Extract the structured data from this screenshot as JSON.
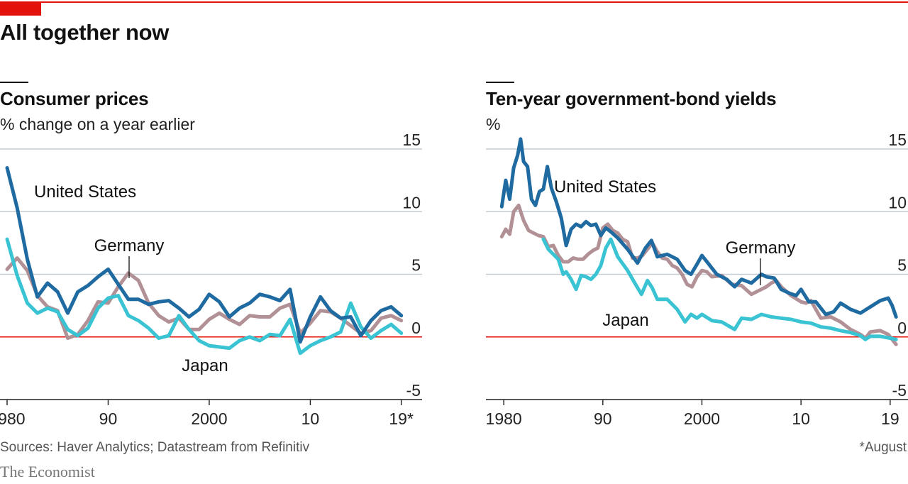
{
  "title": "All together now",
  "source": "Sources: Haver Analytics; Datastream from Refinitiv",
  "footnote": "*August",
  "brand": "The Economist",
  "colors": {
    "accent": "#e3120b",
    "united_states": "#1f6aa0",
    "germany": "#b19096",
    "japan": "#39c3d3",
    "grid": "#c4ccd6",
    "zero_line": "#e3120b"
  },
  "chart_data": [
    {
      "type": "line",
      "title": "Consumer prices",
      "subtitle": "% change on a year earlier",
      "ylim": [
        -5,
        15
      ],
      "xlim": [
        1979.3,
        2021.2
      ],
      "yticks": [
        15,
        10,
        5,
        0,
        -5
      ],
      "ytick_labels": [
        "15",
        "10",
        "5",
        "0",
        "-5"
      ],
      "xticks": [
        1980,
        1990,
        2000,
        2010,
        2019
      ],
      "xtick_labels": [
        "1980",
        "90",
        "2000",
        "10",
        "19*"
      ],
      "series": [
        {
          "name": "United States",
          "label": "United States",
          "color": "#1f6aa0",
          "x": [
            1980,
            1981,
            1982,
            1983,
            1984,
            1985,
            1986,
            1987,
            1988,
            1989,
            1990,
            1991,
            1992,
            1993,
            1994,
            1995,
            1996,
            1997,
            1998,
            1999,
            2000,
            2001,
            2002,
            2003,
            2004,
            2005,
            2006,
            2007,
            2008,
            2009,
            2010,
            2011,
            2012,
            2013,
            2014,
            2015,
            2016,
            2017,
            2018,
            2019
          ],
          "values": [
            13.5,
            10.3,
            6.2,
            3.2,
            4.3,
            3.6,
            1.9,
            3.6,
            4.1,
            4.8,
            5.4,
            4.2,
            3.0,
            3.0,
            2.6,
            2.8,
            2.9,
            2.3,
            1.6,
            2.2,
            3.4,
            2.8,
            1.6,
            2.3,
            2.7,
            3.4,
            3.2,
            2.9,
            3.8,
            -0.4,
            1.6,
            3.2,
            2.1,
            1.5,
            1.6,
            0.1,
            1.3,
            2.1,
            2.4,
            1.7
          ]
        },
        {
          "name": "Germany",
          "label": "Germany",
          "color": "#b19096",
          "x": [
            1980,
            1981,
            1982,
            1983,
            1984,
            1985,
            1986,
            1987,
            1988,
            1989,
            1990,
            1991,
            1992,
            1993,
            1994,
            1995,
            1996,
            1997,
            1998,
            1999,
            2000,
            2001,
            2002,
            2003,
            2004,
            2005,
            2006,
            2007,
            2008,
            2009,
            2010,
            2011,
            2012,
            2013,
            2014,
            2015,
            2016,
            2017,
            2018,
            2019
          ],
          "values": [
            5.4,
            6.3,
            5.3,
            3.3,
            2.4,
            2.1,
            -0.1,
            0.2,
            1.3,
            2.8,
            2.7,
            4.0,
            5.1,
            4.5,
            2.7,
            1.7,
            1.2,
            1.5,
            0.6,
            0.6,
            1.4,
            1.9,
            1.4,
            1.0,
            1.7,
            1.6,
            1.6,
            2.3,
            2.6,
            0.3,
            1.1,
            2.1,
            2.0,
            1.5,
            0.9,
            0.3,
            0.5,
            1.5,
            1.7,
            1.3
          ]
        },
        {
          "name": "Japan",
          "label": "Japan",
          "color": "#39c3d3",
          "x": [
            1980,
            1981,
            1982,
            1983,
            1984,
            1985,
            1986,
            1987,
            1988,
            1989,
            1990,
            1991,
            1992,
            1993,
            1994,
            1995,
            1996,
            1997,
            1998,
            1999,
            2000,
            2001,
            2002,
            2003,
            2004,
            2005,
            2006,
            2007,
            2008,
            2009,
            2010,
            2011,
            2012,
            2013,
            2014,
            2015,
            2016,
            2017,
            2018,
            2019
          ],
          "values": [
            7.8,
            4.9,
            2.7,
            1.9,
            2.3,
            2.0,
            0.6,
            0.1,
            0.7,
            2.3,
            3.1,
            3.3,
            1.7,
            1.3,
            0.7,
            -0.1,
            0.1,
            1.7,
            0.6,
            -0.3,
            -0.7,
            -0.8,
            -0.9,
            -0.3,
            0.0,
            -0.3,
            0.2,
            0.1,
            1.4,
            -1.3,
            -0.7,
            -0.3,
            0.0,
            0.4,
            2.7,
            0.8,
            -0.1,
            0.5,
            1.0,
            0.3
          ]
        }
      ]
    },
    {
      "type": "line",
      "title": "Ten-year government-bond yields",
      "subtitle": "%",
      "ylim": [
        -5,
        15
      ],
      "xlim": [
        1978.2,
        2020.8
      ],
      "yticks": [
        15,
        10,
        5,
        0,
        -5
      ],
      "ytick_labels": [
        "15",
        "10",
        "5",
        "0",
        "-5"
      ],
      "xticks": [
        1980,
        1990,
        2000,
        2010,
        2019
      ],
      "xtick_labels": [
        "1980",
        "90",
        "2000",
        "10",
        "19"
      ],
      "series": [
        {
          "name": "United States",
          "label": "United States",
          "color": "#1f6aa0",
          "x": [
            1979.8,
            1980.2,
            1980.6,
            1981.0,
            1981.4,
            1981.7,
            1982.0,
            1982.4,
            1982.8,
            1983.2,
            1983.6,
            1984.0,
            1984.4,
            1984.8,
            1985.3,
            1985.8,
            1986.3,
            1986.8,
            1987.3,
            1987.8,
            1988.3,
            1988.8,
            1989.3,
            1989.8,
            1990.3,
            1990.8,
            1991.5,
            1992.5,
            1993.5,
            1994.3,
            1994.9,
            1995.5,
            1996.5,
            1997.5,
            1998.3,
            1998.9,
            1999.5,
            2000.0,
            2000.6,
            2001.5,
            2002.5,
            2003.3,
            2004.0,
            2005.0,
            2006.0,
            2006.5,
            2007.3,
            2008.0,
            2008.8,
            2009.5,
            2010.0,
            2010.8,
            2011.5,
            2012.5,
            2013.3,
            2014.0,
            2015.0,
            2016.0,
            2017.0,
            2018.0,
            2018.8,
            2019.2,
            2019.6
          ],
          "values": [
            10.4,
            12.5,
            11.0,
            13.5,
            14.5,
            15.8,
            14.0,
            13.6,
            11.0,
            10.5,
            11.6,
            11.8,
            13.6,
            11.9,
            10.8,
            9.5,
            7.3,
            8.6,
            9.0,
            8.8,
            9.2,
            8.9,
            9.0,
            8.1,
            8.7,
            8.4,
            7.9,
            7.0,
            5.9,
            7.1,
            7.7,
            6.4,
            6.6,
            6.2,
            5.3,
            5.0,
            5.8,
            6.5,
            5.9,
            5.0,
            4.6,
            4.0,
            4.6,
            4.3,
            5.0,
            4.8,
            4.7,
            3.8,
            3.5,
            3.3,
            3.8,
            2.8,
            2.8,
            1.8,
            2.0,
            2.7,
            2.2,
            1.9,
            2.4,
            2.9,
            3.1,
            2.5,
            1.6
          ]
        },
        {
          "name": "Germany",
          "label": "Germany",
          "color": "#b19096",
          "x": [
            1979.8,
            1980.2,
            1980.6,
            1981.0,
            1981.5,
            1982.0,
            1982.5,
            1983.0,
            1983.5,
            1984.0,
            1984.5,
            1985.0,
            1985.5,
            1986.0,
            1986.5,
            1987.0,
            1987.5,
            1988.0,
            1988.5,
            1989.0,
            1989.5,
            1990.0,
            1990.5,
            1991.0,
            1991.5,
            1992.0,
            1992.5,
            1993.0,
            1993.5,
            1994.0,
            1994.5,
            1995.0,
            1995.5,
            1996.0,
            1996.5,
            1997.0,
            1997.5,
            1998.0,
            1998.5,
            1999.0,
            1999.5,
            2000.0,
            2000.5,
            2001.0,
            2002.0,
            2003.0,
            2004.0,
            2005.0,
            2006.0,
            2006.5,
            2007.0,
            2007.5,
            2008.0,
            2009.0,
            2010.0,
            2010.5,
            2011.0,
            2012.0,
            2013.0,
            2014.0,
            2015.0,
            2016.0,
            2016.5,
            2017.0,
            2018.0,
            2018.8,
            2019.2,
            2019.6
          ],
          "values": [
            8.0,
            8.6,
            8.2,
            10.0,
            10.5,
            9.3,
            8.5,
            8.3,
            8.1,
            8.0,
            7.2,
            7.3,
            6.5,
            6.0,
            6.0,
            6.3,
            6.2,
            6.2,
            6.6,
            6.9,
            7.1,
            8.7,
            9.0,
            8.5,
            8.3,
            7.8,
            7.6,
            6.3,
            6.3,
            6.5,
            7.0,
            7.5,
            6.8,
            6.3,
            6.2,
            5.7,
            5.5,
            5.0,
            4.2,
            4.0,
            4.8,
            5.3,
            5.2,
            4.8,
            4.9,
            4.2,
            4.1,
            3.4,
            3.8,
            4.0,
            4.3,
            4.5,
            4.0,
            3.3,
            2.8,
            2.7,
            2.9,
            1.5,
            1.6,
            1.2,
            0.6,
            0.2,
            -0.1,
            0.4,
            0.5,
            0.2,
            -0.2,
            -0.6
          ]
        },
        {
          "name": "Japan",
          "label": "Japan",
          "color": "#39c3d3",
          "x": [
            1984.0,
            1984.5,
            1985.0,
            1985.5,
            1986.0,
            1986.3,
            1986.8,
            1987.3,
            1987.8,
            1988.3,
            1988.8,
            1989.3,
            1989.8,
            1990.3,
            1990.8,
            1991.5,
            1992.5,
            1993.3,
            1993.9,
            1994.5,
            1995.0,
            1995.5,
            1996.5,
            1997.5,
            1998.3,
            1998.9,
            1999.5,
            2000.0,
            2001.0,
            2002.0,
            2003.3,
            2004.0,
            2005.0,
            2006.0,
            2007.0,
            2008.0,
            2009.0,
            2010.0,
            2011.0,
            2012.0,
            2013.0,
            2014.0,
            2015.0,
            2016.0,
            2016.5,
            2017.0,
            2018.0,
            2019.0,
            2019.6
          ],
          "values": [
            7.8,
            7.0,
            6.6,
            6.2,
            5.0,
            5.2,
            4.6,
            3.8,
            4.9,
            4.8,
            4.6,
            5.0,
            5.7,
            7.1,
            7.8,
            6.4,
            5.3,
            4.2,
            3.4,
            4.5,
            3.9,
            3.0,
            3.0,
            2.2,
            1.2,
            1.8,
            1.5,
            1.8,
            1.3,
            1.2,
            0.6,
            1.5,
            1.4,
            1.8,
            1.6,
            1.5,
            1.4,
            1.2,
            1.1,
            0.8,
            0.7,
            0.5,
            0.35,
            0.1,
            -0.2,
            0.05,
            0.05,
            -0.1,
            -0.2
          ]
        }
      ]
    }
  ]
}
